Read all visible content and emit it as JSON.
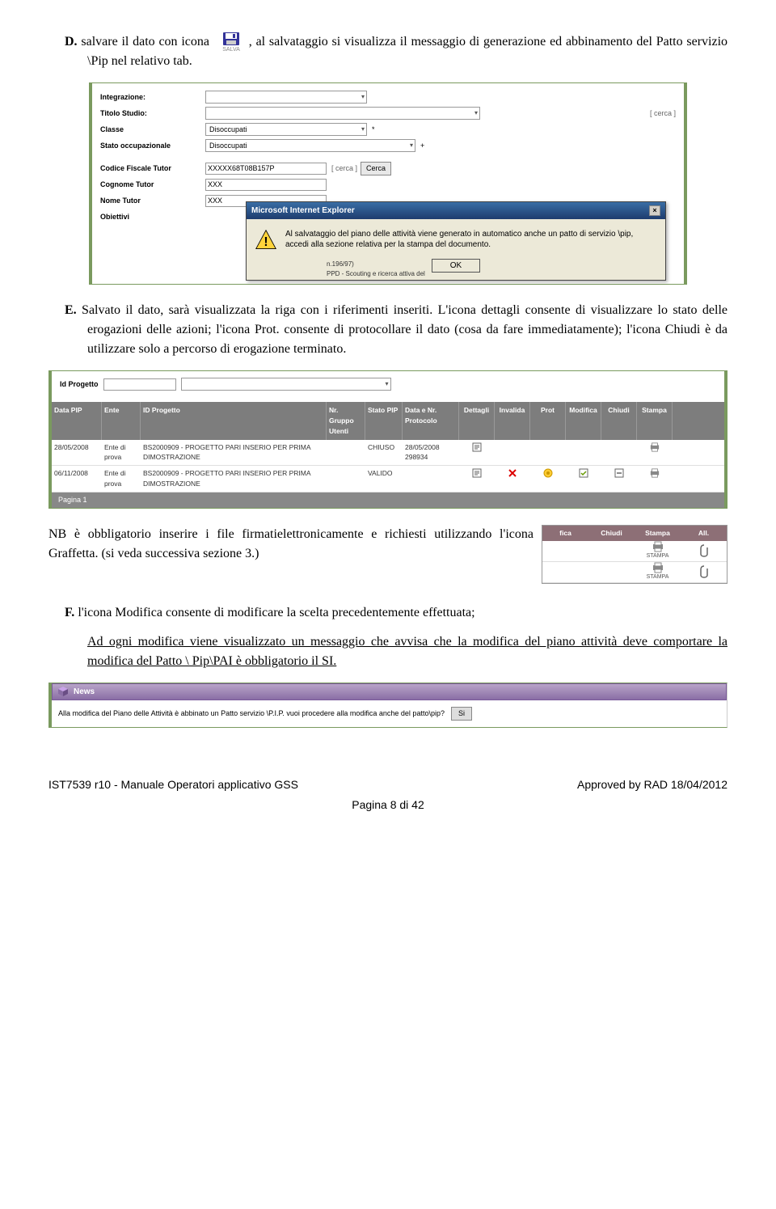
{
  "body": {
    "D_label": "D.",
    "D_pre": "salvare il dato con icona",
    "salva_label": "SALVA",
    "D_post": ", al salvataggio si visualizza il messaggio di generazione ed abbinamento del Patto servizio \\Pip nel relativo tab.",
    "E_label": "E.",
    "E_text": "Salvato il dato, sarà visualizzata la riga con i riferimenti inseriti. L'icona dettagli consente di visualizzare lo stato delle erogazioni delle azioni; l'icona Prot. consente di protocollare il dato (cosa da fare immediatamente); l'icona Chiudi è da utilizzare solo a percorso di erogazione terminato.",
    "NB_text": "NB è obbligatorio inserire i file firmatielettronicamente e richiesti utilizzando l'icona Graffetta. (si veda successiva sezione 3.)",
    "F_label": "F.",
    "F_text1": "l'icona Modifica consente di modificare la scelta precedentemente effettuata;",
    "F_text2": "Ad ogni modifica viene visualizzato un messaggio che avvisa che la modifica del piano attività deve comportare la modifica del Patto \\ Pip\\PAI è obbligatorio il SI."
  },
  "shot1": {
    "labels": {
      "integrazione": "Integrazione:",
      "titolo": "Titolo Studio:",
      "classe": "Classe",
      "stato_occ": "Stato occupazionale",
      "cf_tutor": "Codice Fiscale Tutor",
      "cognome_tutor": "Cognome Tutor",
      "nome_tutor": "Nome Tutor",
      "obiettivi": "Obiettivi"
    },
    "values": {
      "classe": "Disoccupati",
      "stato_occ": "Disoccupati",
      "cf": "XXXXX68T08B157P",
      "cognome": "XXX",
      "nome": "XXX"
    },
    "links": {
      "cerca1": "[ cerca ]",
      "cerca2": "[ cerca ]",
      "cerca_btn": "Cerca"
    },
    "star": "*",
    "plus": "+",
    "dialog": {
      "title": "Microsoft Internet Explorer",
      "msg": "Al salvataggio del piano delle attività viene generato in automatico anche un patto di servizio \\pip, accedi alla sezione relativa per la stampa del documento.",
      "ok": "OK"
    },
    "note1": "n.196/97)",
    "note2": "PPD - Scouting e ricerca attiva del"
  },
  "shot2": {
    "filter_label": "Id Progetto",
    "columns": [
      "Data PIP",
      "Ente",
      "ID Progetto",
      "Nr. Gruppo Utenti",
      "Stato PIP",
      "Data e Nr. Protocolo",
      "Dettagli",
      "Invalida",
      "Prot",
      "Modifica",
      "Chiudi",
      "Stampa"
    ],
    "rows": [
      {
        "date": "28/05/2008",
        "ente": "Ente di prova",
        "idp": "BS2000909 - PROGETTO PARI INSERIO PER PRIMA DIMOSTRAZIONE",
        "stato": "CHIUSO",
        "dtpr": "28/05/2008 298934",
        "det": true,
        "inv": false,
        "prot": false,
        "mod": false,
        "chi": false,
        "stp": true
      },
      {
        "date": "06/11/2008",
        "ente": "Ente di prova",
        "idp": "BS2000909 - PROGETTO PARI INSERIO PER PRIMA DIMOSTRAZIONE",
        "stato": "VALIDO",
        "dtpr": "",
        "det": true,
        "inv": true,
        "prot": true,
        "mod": true,
        "chi": true,
        "stp": true
      }
    ],
    "pagina": "Pagina 1"
  },
  "shot3": {
    "columns": [
      "fica",
      "Chiudi",
      "Stampa",
      "All."
    ],
    "stampa_label": "STAMPA"
  },
  "shot4": {
    "news": "News",
    "msg": "Alla modifica del Piano delle Attività è abbinato un Patto servizio \\P.I.P. vuoi procedere alla modifica anche del patto\\pip?",
    "si": "Si"
  },
  "footer": {
    "left": "IST7539 r10 -  Manuale Operatori applicativo GSS",
    "right": "Approved by RAD 18/04/2012",
    "pagina": "Pagina 8 di 42"
  },
  "colors": {
    "green": "#7a9a5e",
    "grayhdr": "#7d7d7d",
    "mauve": "#8d6f76",
    "purple": "#8a6ea5",
    "ie_blue": "#3a6ea5"
  }
}
